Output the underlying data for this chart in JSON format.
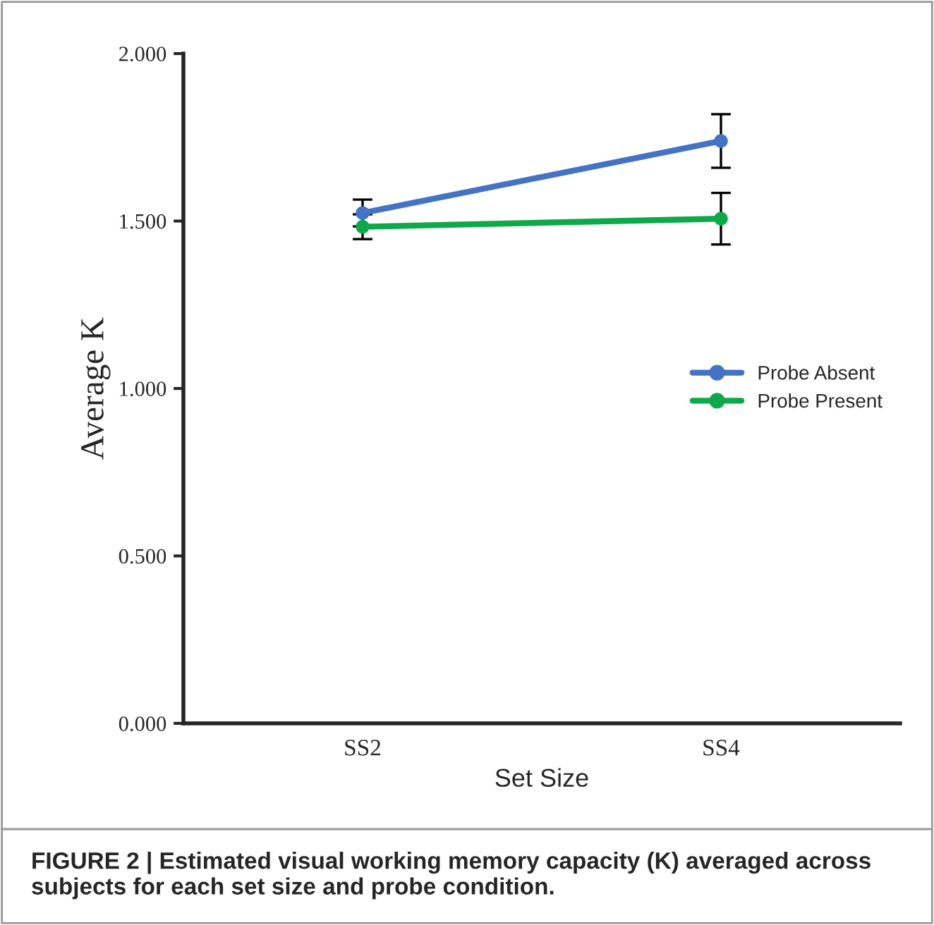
{
  "chart_data": {
    "type": "line",
    "xlabel": "Set Size",
    "ylabel": "Average K",
    "categories": [
      "SS2",
      "SS4"
    ],
    "series": [
      {
        "name": "Probe Absent",
        "color": "#4472c4",
        "values": [
          1.524,
          1.739
        ],
        "errors": [
          0.04,
          0.08
        ]
      },
      {
        "name": "Probe Present",
        "color": "#0fa84a",
        "values": [
          1.483,
          1.507
        ],
        "errors": [
          0.037,
          0.077
        ]
      }
    ],
    "ylim": [
      0,
      2
    ],
    "yticks": [
      {
        "value": 0,
        "label": "0.000"
      },
      {
        "value": 0.5,
        "label": "0.500"
      },
      {
        "value": 1,
        "label": "1.000"
      },
      {
        "value": 1.5,
        "label": "1.500"
      },
      {
        "value": 2,
        "label": "2.000"
      }
    ],
    "marker": "circle",
    "line_style": "solid",
    "grid": false,
    "legend": "center right",
    "annotations": [
      "FIGURE 2 | Estimated visual working memory capacity (K) averaged across subjects for each set size and probe condition."
    ]
  }
}
